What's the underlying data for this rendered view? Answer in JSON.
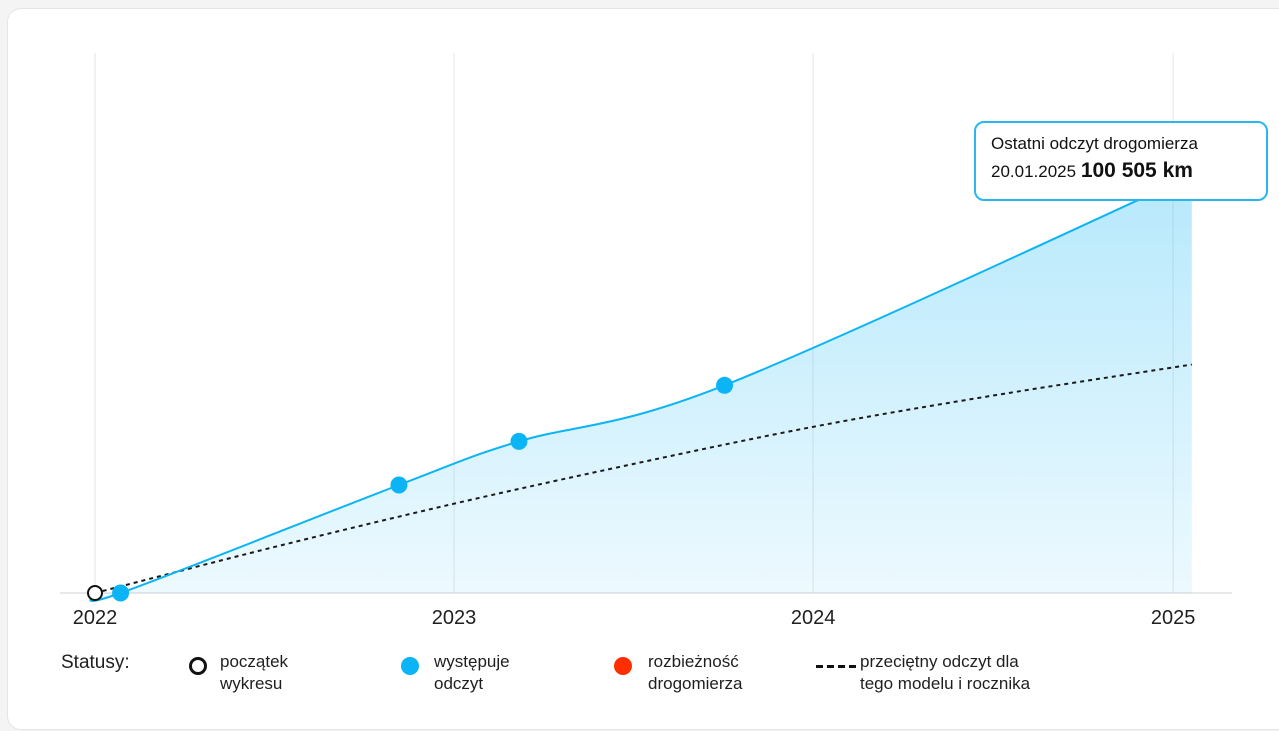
{
  "colors": {
    "series": "#0bb4f5",
    "average": "#1a1a1a",
    "start": "#111111",
    "discrepancy": "#ff2e00",
    "grid": "#e6e6e6",
    "axis": "#d0d0d0"
  },
  "callout": {
    "title": "Ostatni odczyt drogomierza",
    "date": "20.01.2025",
    "value": "100 505 km"
  },
  "legend": {
    "title": "Statusy:",
    "items": [
      {
        "key": "start",
        "icon": "hollow-circle-icon",
        "label": "początek\nwykresu"
      },
      {
        "key": "reading",
        "icon": "filled-blue-circle-icon",
        "label": "występuje\nodczyt"
      },
      {
        "key": "discrepancy",
        "icon": "filled-red-circle-icon",
        "label": "rozbieżność\ndrogomierza"
      },
      {
        "key": "average",
        "icon": "dashed-line-icon",
        "label": "przeciętny odczyt dla\ntego modelu i rocznika"
      }
    ]
  },
  "chart_data": {
    "type": "area",
    "title": "",
    "xlabel": "",
    "ylabel": "",
    "x_ticks": [
      "2022",
      "2023",
      "2024",
      "2025"
    ],
    "xlim": [
      "2022-01-01",
      "2025-02-08"
    ],
    "ylim": [
      0,
      130000
    ],
    "grid": "vertical",
    "legend": "bottom",
    "start_point": {
      "x": "2022-01-01",
      "y": 0
    },
    "series": [
      {
        "values": [
          {
            "x": "2022-01-27",
            "y": 0
          },
          {
            "x": "2022-11-06",
            "y": 26000
          },
          {
            "x": "2023-03-08",
            "y": 36500
          },
          {
            "x": "2023-10-03",
            "y": 50000
          },
          {
            "x": "2025-01-20",
            "y": 100505
          }
        ]
      },
      {
        "style": "dashed",
        "values": [
          {
            "x": "2022-01-01",
            "y": 0
          },
          {
            "x": "2022-07-01",
            "y": 11000
          },
          {
            "x": "2023-01-01",
            "y": 21500
          },
          {
            "x": "2023-07-01",
            "y": 31000
          },
          {
            "x": "2024-01-01",
            "y": 40000
          },
          {
            "x": "2024-07-01",
            "y": 47500
          },
          {
            "x": "2025-01-20",
            "y": 55000
          }
        ]
      }
    ]
  }
}
